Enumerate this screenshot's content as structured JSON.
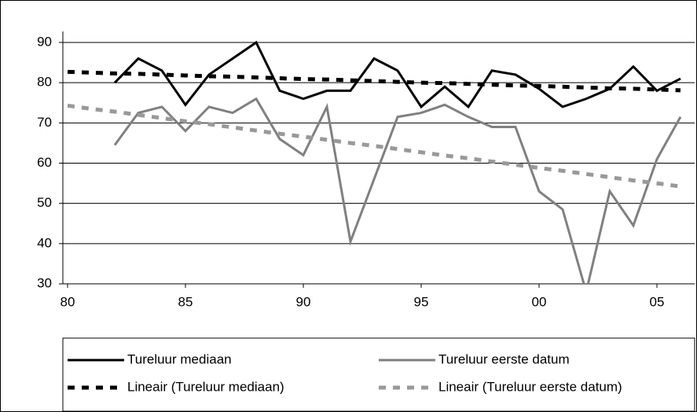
{
  "chart_data": {
    "type": "line",
    "x": [
      1980,
      1981,
      1982,
      1983,
      1984,
      1985,
      1986,
      1987,
      1988,
      1989,
      1990,
      1991,
      1992,
      1993,
      1994,
      1995,
      1996,
      1997,
      1998,
      1999,
      2000,
      2001,
      2002,
      2003,
      2004,
      2005,
      2006
    ],
    "series": [
      {
        "name": "Tureluur mediaan",
        "color": "#000000",
        "dashed": false,
        "values": [
          null,
          null,
          80,
          86,
          83,
          74.5,
          82,
          86,
          90,
          78,
          76,
          78,
          78,
          86,
          83,
          74,
          79,
          74,
          83,
          82,
          78.5,
          74,
          76,
          78.5,
          84,
          78,
          81
        ]
      },
      {
        "name": "Tureluur eerste datum",
        "color": "#808080",
        "dashed": false,
        "values": [
          null,
          null,
          64.5,
          72.5,
          74,
          68,
          74,
          72.5,
          76,
          66,
          62,
          74,
          40.5,
          56,
          71.5,
          72.5,
          74.5,
          71.5,
          69,
          69,
          53,
          48.5,
          28,
          53,
          44.5,
          61,
          71.5
        ]
      },
      {
        "name": "Lineair (Tureluur mediaan)",
        "color": "#000000",
        "dashed": true,
        "values": [
          82.7,
          82.5,
          82.3,
          82.2,
          82.0,
          81.8,
          81.6,
          81.5,
          81.3,
          81.1,
          80.9,
          80.8,
          80.6,
          80.4,
          80.2,
          80.0,
          79.9,
          79.7,
          79.5,
          79.3,
          79.2,
          79.0,
          78.8,
          78.6,
          78.5,
          78.3,
          78.1
        ]
      },
      {
        "name": "Lineair (Tureluur eerste datum)",
        "color": "#999999",
        "dashed": true,
        "values": [
          74.3,
          73.5,
          72.8,
          72.0,
          71.2,
          70.4,
          69.7,
          68.9,
          68.1,
          67.3,
          66.6,
          65.8,
          65.0,
          64.3,
          63.5,
          62.7,
          61.9,
          61.2,
          60.4,
          59.6,
          58.8,
          58.1,
          57.3,
          56.5,
          55.7,
          55.0,
          54.2
        ]
      }
    ],
    "xlim": [
      1979.8,
      2006.6
    ],
    "xticks": [
      {
        "value": 1980,
        "label": "80"
      },
      {
        "value": 1985,
        "label": "85"
      },
      {
        "value": 1990,
        "label": "90"
      },
      {
        "value": 1995,
        "label": "95"
      },
      {
        "value": 2000,
        "label": "00"
      },
      {
        "value": 2005,
        "label": "05"
      }
    ],
    "ylim": [
      30,
      90
    ],
    "yticks": [
      30,
      40,
      50,
      60,
      70,
      80,
      90
    ],
    "grid": true,
    "legend": "bottom"
  }
}
